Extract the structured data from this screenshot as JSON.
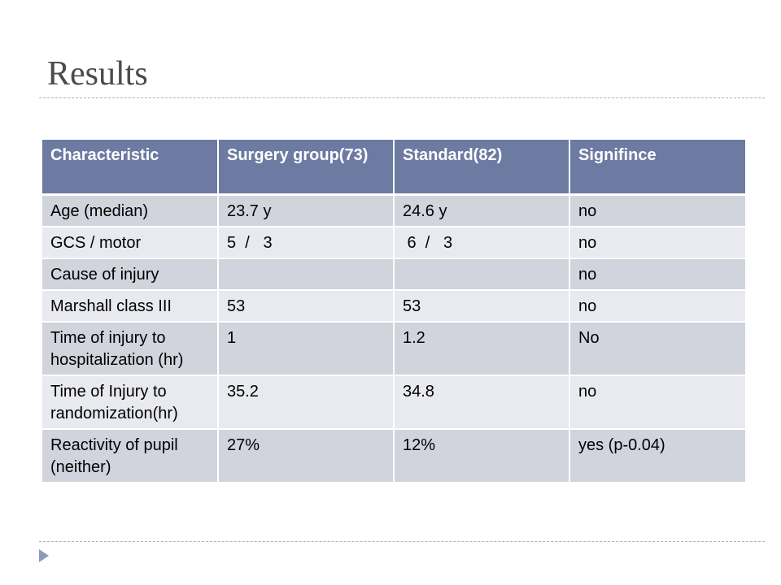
{
  "slide": {
    "title": "Results"
  },
  "table": {
    "headers": [
      "Characteristic",
      "Surgery group(73)",
      "Standard(82)",
      "Signifince"
    ],
    "rows": [
      [
        "Age (median)",
        "23.7 y",
        "24.6 y",
        "no"
      ],
      [
        "GCS / motor",
        "5  /   3",
        " 6  /   3",
        "no"
      ],
      [
        "Cause of injury",
        "",
        "",
        "no"
      ],
      [
        "Marshall class III",
        "53",
        "53",
        "no"
      ],
      [
        "Time of injury to hospitalization (hr)",
        "1",
        "1.2",
        "No"
      ],
      [
        "Time of Injury to randomization(hr)",
        "35.2",
        "34.8",
        "no"
      ],
      [
        "Reactivity of pupil (neither)",
        "27%",
        "12%",
        "yes (p-0.04)"
      ]
    ]
  },
  "icons": {
    "nav": "next-slide-arrow-icon"
  },
  "colors": {
    "header_bg": "#6d7aa2",
    "row_dark": "#d1d4dd",
    "row_light": "#e9eaef",
    "title": "#4b4b4b"
  }
}
